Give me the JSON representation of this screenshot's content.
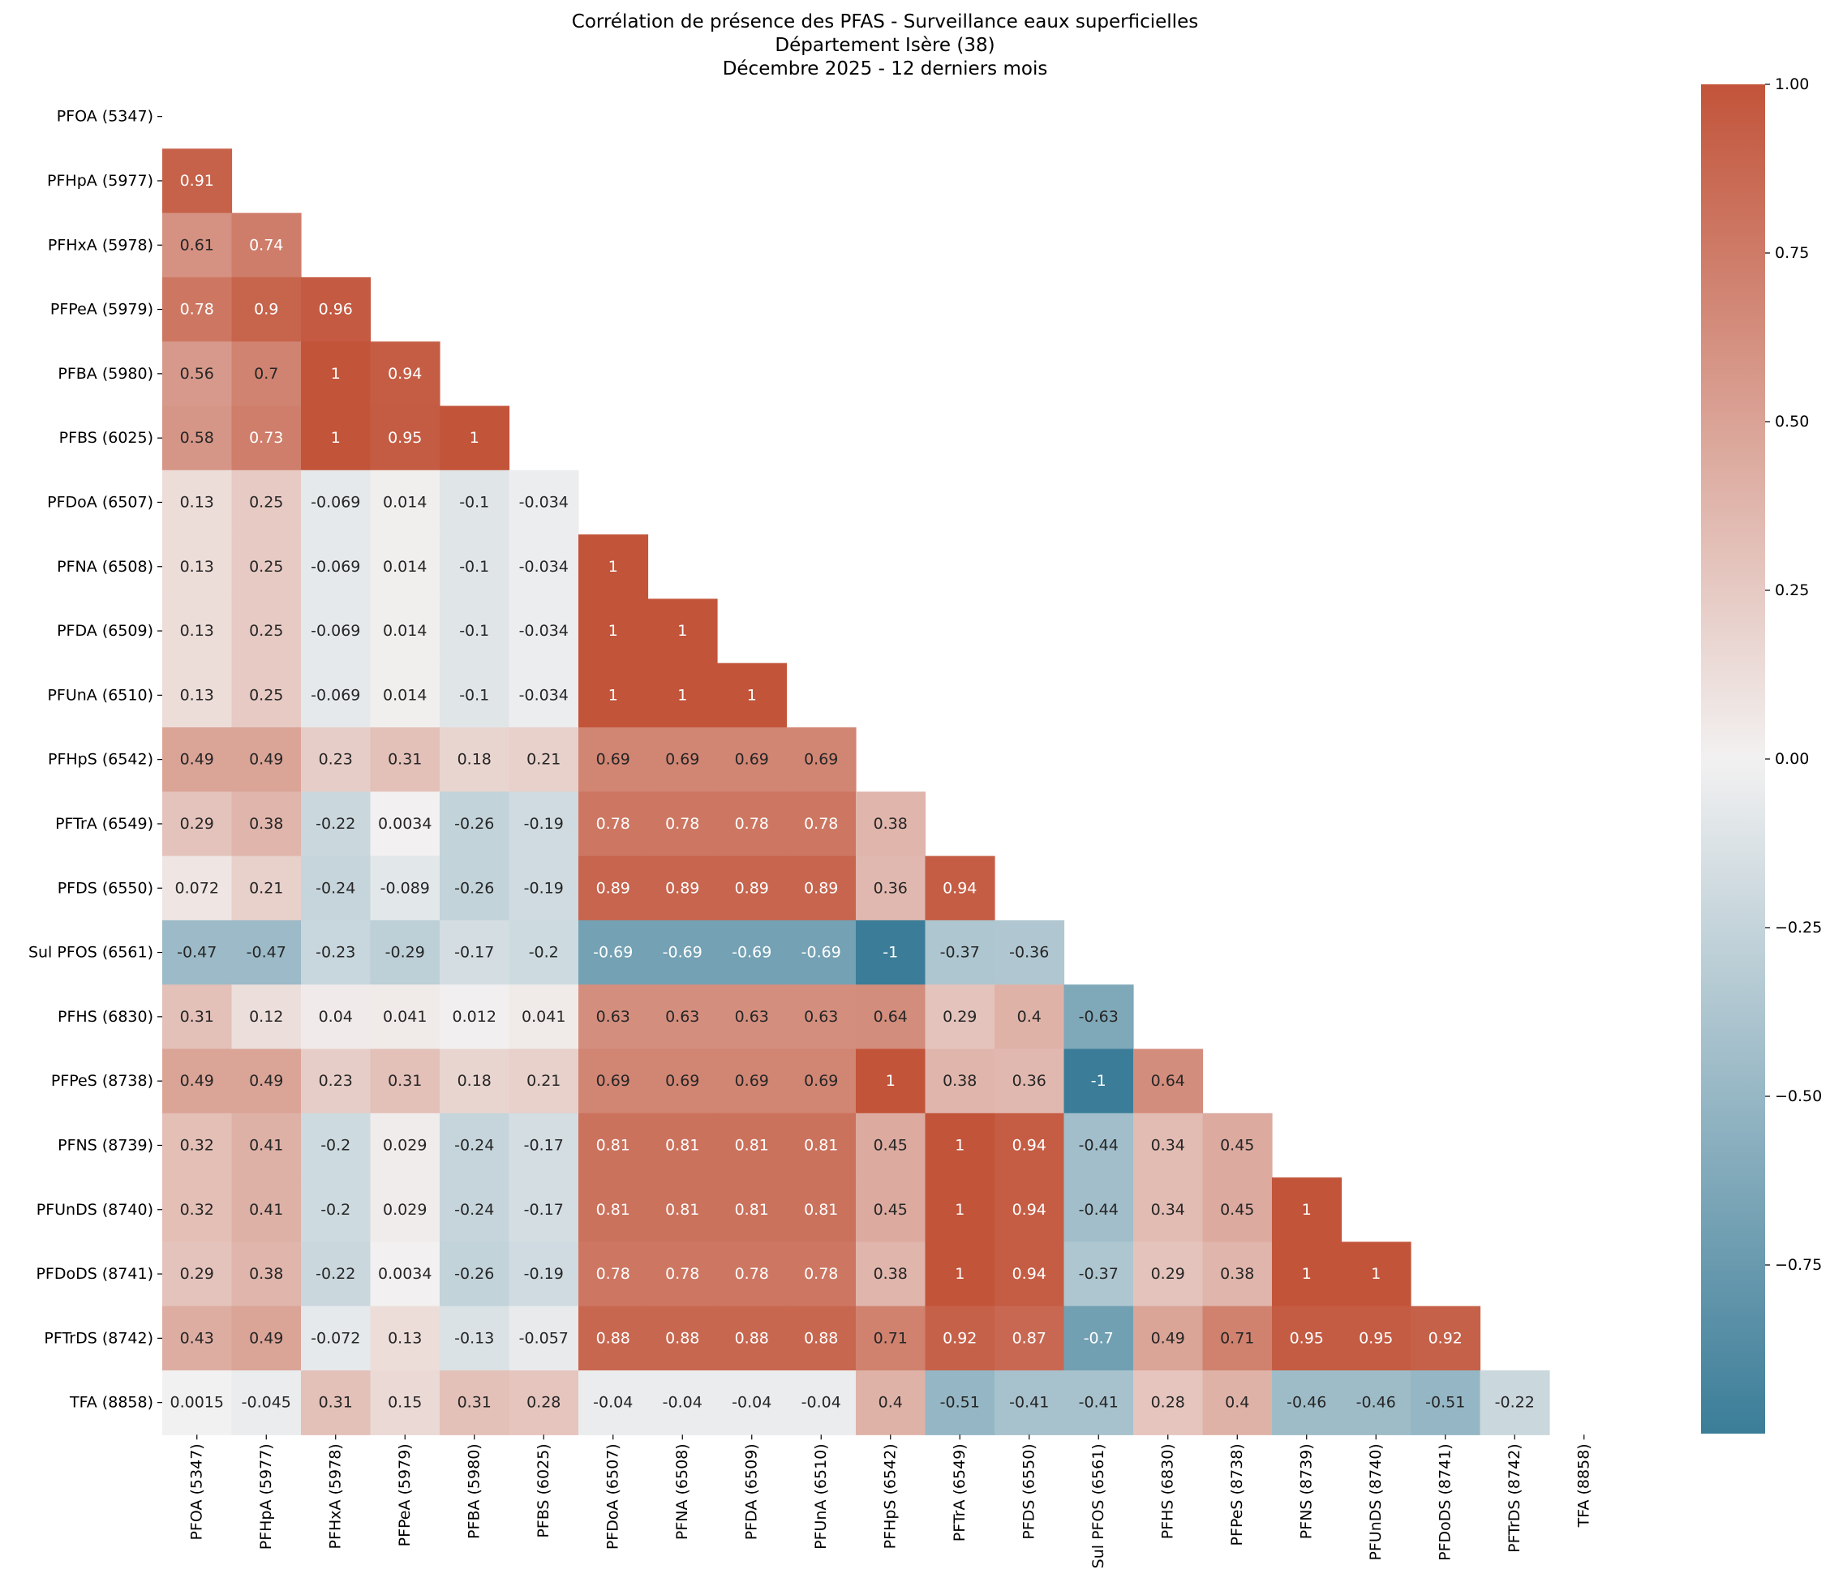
{
  "chart_data": {
    "type": "heatmap",
    "title": [
      "Corrélation de présence des PFAS - Surveillance eaux superficielles",
      "Département Isère (38)",
      "Décembre 2025 - 12 derniers mois"
    ],
    "xlabel": "",
    "ylabel": "",
    "mask": "upper triangle incl. diagonal",
    "labels": [
      "PFOA (5347)",
      "PFHpA (5977)",
      "PFHxA (5978)",
      "PFPeA (5979)",
      "PFBA (5980)",
      "PFBS (6025)",
      "PFDoA (6507)",
      "PFNA (6508)",
      "PFDA (6509)",
      "PFUnA (6510)",
      "PFHpS (6542)",
      "PFTrA (6549)",
      "PFDS (6550)",
      "Sul PFOS (6561)",
      "PFHS (6830)",
      "PFPeS (8738)",
      "PFNS (8739)",
      "PFUnDS (8740)",
      "PFDoDS (8741)",
      "PFTrDS (8742)",
      "TFA (8858)"
    ],
    "rows": [
      [],
      [
        "0.91"
      ],
      [
        "0.61",
        "0.74"
      ],
      [
        "0.78",
        "0.9",
        "0.96"
      ],
      [
        "0.56",
        "0.7",
        "1",
        "0.94"
      ],
      [
        "0.58",
        "0.73",
        "1",
        "0.95",
        "1"
      ],
      [
        "0.13",
        "0.25",
        "-0.069",
        "0.014",
        "-0.1",
        "-0.034"
      ],
      [
        "0.13",
        "0.25",
        "-0.069",
        "0.014",
        "-0.1",
        "-0.034",
        "1"
      ],
      [
        "0.13",
        "0.25",
        "-0.069",
        "0.014",
        "-0.1",
        "-0.034",
        "1",
        "1"
      ],
      [
        "0.13",
        "0.25",
        "-0.069",
        "0.014",
        "-0.1",
        "-0.034",
        "1",
        "1",
        "1"
      ],
      [
        "0.49",
        "0.49",
        "0.23",
        "0.31",
        "0.18",
        "0.21",
        "0.69",
        "0.69",
        "0.69",
        "0.69"
      ],
      [
        "0.29",
        "0.38",
        "-0.22",
        "0.0034",
        "-0.26",
        "-0.19",
        "0.78",
        "0.78",
        "0.78",
        "0.78",
        "0.38"
      ],
      [
        "0.072",
        "0.21",
        "-0.24",
        "-0.089",
        "-0.26",
        "-0.19",
        "0.89",
        "0.89",
        "0.89",
        "0.89",
        "0.36",
        "0.94"
      ],
      [
        "-0.47",
        "-0.47",
        "-0.23",
        "-0.29",
        "-0.17",
        "-0.2",
        "-0.69",
        "-0.69",
        "-0.69",
        "-0.69",
        "-1",
        "-0.37",
        "-0.36"
      ],
      [
        "0.31",
        "0.12",
        "0.04",
        "0.041",
        "0.012",
        "0.041",
        "0.63",
        "0.63",
        "0.63",
        "0.63",
        "0.64",
        "0.29",
        "0.4",
        "-0.63"
      ],
      [
        "0.49",
        "0.49",
        "0.23",
        "0.31",
        "0.18",
        "0.21",
        "0.69",
        "0.69",
        "0.69",
        "0.69",
        "1",
        "0.38",
        "0.36",
        "-1",
        "0.64"
      ],
      [
        "0.32",
        "0.41",
        "-0.2",
        "0.029",
        "-0.24",
        "-0.17",
        "0.81",
        "0.81",
        "0.81",
        "0.81",
        "0.45",
        "1",
        "0.94",
        "-0.44",
        "0.34",
        "0.45"
      ],
      [
        "0.32",
        "0.41",
        "-0.2",
        "0.029",
        "-0.24",
        "-0.17",
        "0.81",
        "0.81",
        "0.81",
        "0.81",
        "0.45",
        "1",
        "0.94",
        "-0.44",
        "0.34",
        "0.45",
        "1"
      ],
      [
        "0.29",
        "0.38",
        "-0.22",
        "0.0034",
        "-0.26",
        "-0.19",
        "0.78",
        "0.78",
        "0.78",
        "0.78",
        "0.38",
        "1",
        "0.94",
        "-0.37",
        "0.29",
        "0.38",
        "1",
        "1"
      ],
      [
        "0.43",
        "0.49",
        "-0.072",
        "0.13",
        "-0.13",
        "-0.057",
        "0.88",
        "0.88",
        "0.88",
        "0.88",
        "0.71",
        "0.92",
        "0.87",
        "-0.7",
        "0.49",
        "0.71",
        "0.95",
        "0.95",
        "0.92"
      ],
      [
        "0.0015",
        "-0.045",
        "0.31",
        "0.15",
        "0.31",
        "0.28",
        "-0.04",
        "-0.04",
        "-0.04",
        "-0.04",
        "0.4",
        "-0.51",
        "-0.41",
        "-0.41",
        "0.28",
        "0.4",
        "-0.46",
        "-0.46",
        "-0.51",
        "-0.22"
      ]
    ],
    "colorbar": {
      "vmin": -1,
      "vmax": 1,
      "ticks": [
        "1.00",
        "0.75",
        "0.50",
        "0.25",
        "0.00",
        "−0.25",
        "−0.50",
        "−0.75"
      ],
      "tick_values": [
        1,
        0.75,
        0.5,
        0.25,
        0,
        -0.25,
        -0.5,
        -0.75
      ]
    },
    "colormap": {
      "negative": "#3b7d98",
      "center": "#f2f1f1",
      "positive": "#c2543a"
    }
  }
}
